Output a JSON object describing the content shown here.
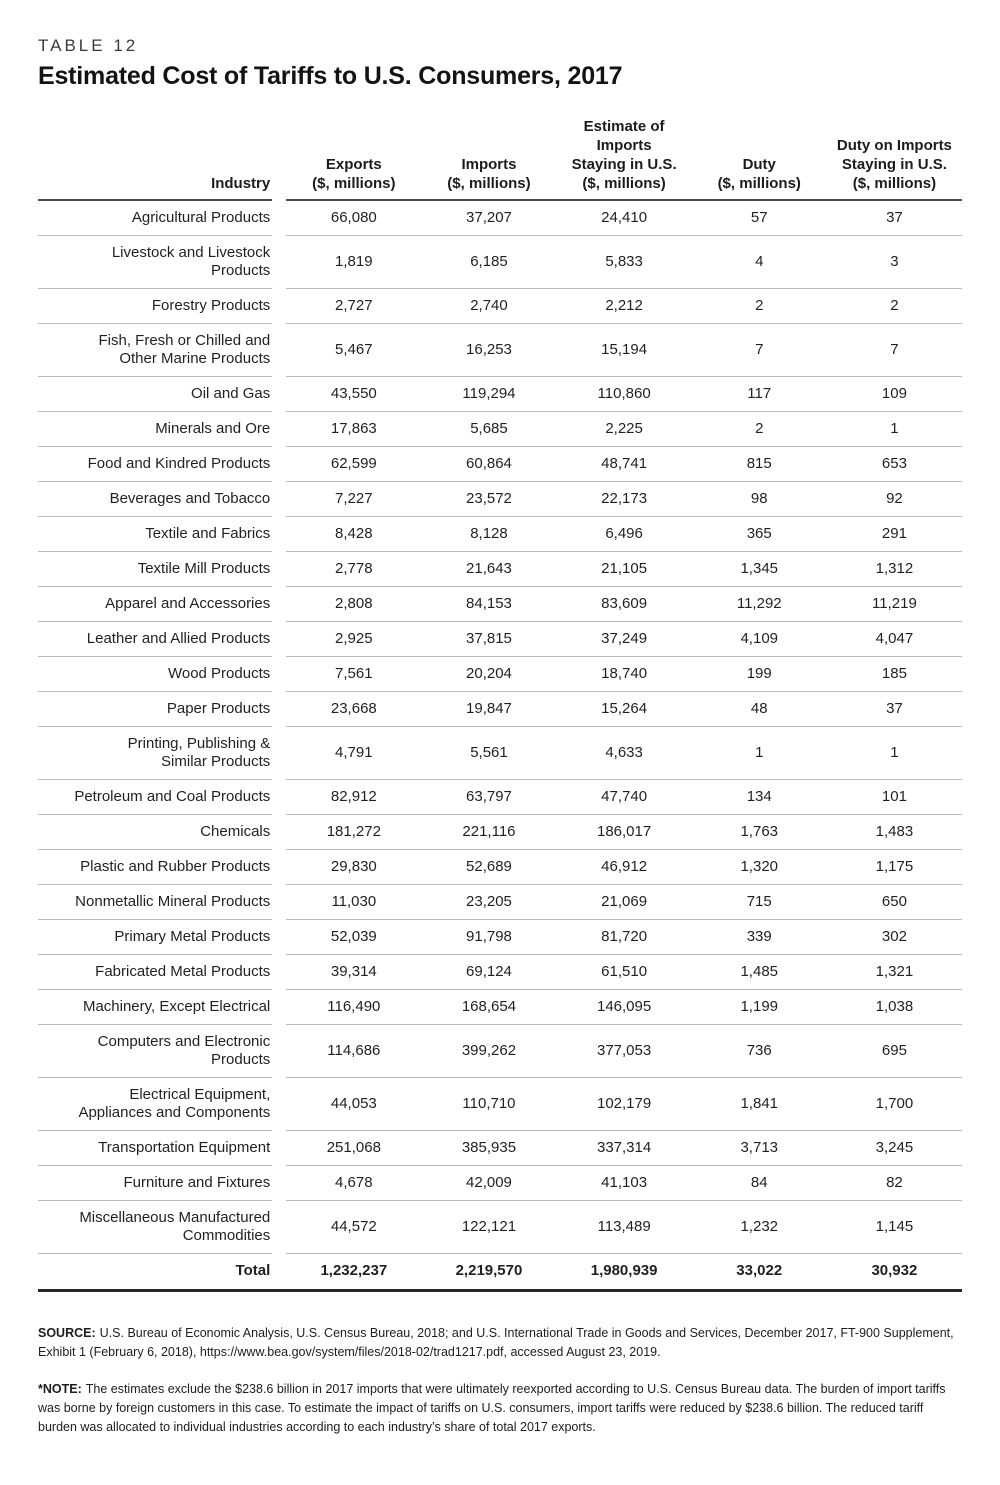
{
  "page": {
    "table_label": "TABLE 12",
    "title": "Estimated Cost of Tariffs to U.S. Consumers, 2017"
  },
  "chart_data": {
    "type": "table",
    "headers": {
      "industry": "Industry",
      "exports": "Exports\n($, millions)",
      "imports": "Imports\n($, millions)",
      "estimate_staying": "Estimate of\nImports\nStaying in U.S.\n($, millions)",
      "duty": "Duty\n($, millions)",
      "duty_staying": "Duty on Imports\nStaying in U.S.\n($, millions)"
    },
    "rows": [
      {
        "industry": "Agricultural Products",
        "values": [
          "66,080",
          "37,207",
          "24,410",
          "57",
          "37"
        ]
      },
      {
        "industry": "Livestock and Livestock\nProducts",
        "values": [
          "1,819",
          "6,185",
          "5,833",
          "4",
          "3"
        ]
      },
      {
        "industry": "Forestry Products",
        "values": [
          "2,727",
          "2,740",
          "2,212",
          "2",
          "2"
        ]
      },
      {
        "industry": "Fish, Fresh or Chilled and\nOther Marine Products",
        "values": [
          "5,467",
          "16,253",
          "15,194",
          "7",
          "7"
        ]
      },
      {
        "industry": "Oil and Gas",
        "values": [
          "43,550",
          "119,294",
          "110,860",
          "117",
          "109"
        ]
      },
      {
        "industry": "Minerals and Ore",
        "values": [
          "17,863",
          "5,685",
          "2,225",
          "2",
          "1"
        ]
      },
      {
        "industry": "Food and Kindred Products",
        "values": [
          "62,599",
          "60,864",
          "48,741",
          "815",
          "653"
        ]
      },
      {
        "industry": "Beverages and Tobacco",
        "values": [
          "7,227",
          "23,572",
          "22,173",
          "98",
          "92"
        ]
      },
      {
        "industry": "Textile and Fabrics",
        "values": [
          "8,428",
          "8,128",
          "6,496",
          "365",
          "291"
        ]
      },
      {
        "industry": "Textile Mill Products",
        "values": [
          "2,778",
          "21,643",
          "21,105",
          "1,345",
          "1,312"
        ]
      },
      {
        "industry": "Apparel and Accessories",
        "values": [
          "2,808",
          "84,153",
          "83,609",
          "11,292",
          "11,219"
        ]
      },
      {
        "industry": "Leather and Allied Products",
        "values": [
          "2,925",
          "37,815",
          "37,249",
          "4,109",
          "4,047"
        ]
      },
      {
        "industry": "Wood Products",
        "values": [
          "7,561",
          "20,204",
          "18,740",
          "199",
          "185"
        ]
      },
      {
        "industry": "Paper Products",
        "values": [
          "23,668",
          "19,847",
          "15,264",
          "48",
          "37"
        ]
      },
      {
        "industry": "Printing, Publishing &\nSimilar Products",
        "values": [
          "4,791",
          "5,561",
          "4,633",
          "1",
          "1"
        ]
      },
      {
        "industry": "Petroleum and Coal Products",
        "values": [
          "82,912",
          "63,797",
          "47,740",
          "134",
          "101"
        ]
      },
      {
        "industry": "Chemicals",
        "values": [
          "181,272",
          "221,116",
          "186,017",
          "1,763",
          "1,483"
        ]
      },
      {
        "industry": "Plastic and Rubber Products",
        "values": [
          "29,830",
          "52,689",
          "46,912",
          "1,320",
          "1,175"
        ]
      },
      {
        "industry": "Nonmetallic Mineral Products",
        "values": [
          "11,030",
          "23,205",
          "21,069",
          "715",
          "650"
        ]
      },
      {
        "industry": "Primary Metal Products",
        "values": [
          "52,039",
          "91,798",
          "81,720",
          "339",
          "302"
        ]
      },
      {
        "industry": "Fabricated Metal Products",
        "values": [
          "39,314",
          "69,124",
          "61,510",
          "1,485",
          "1,321"
        ]
      },
      {
        "industry": "Machinery, Except Electrical",
        "values": [
          "116,490",
          "168,654",
          "146,095",
          "1,199",
          "1,038"
        ]
      },
      {
        "industry": "Computers and Electronic\nProducts",
        "values": [
          "114,686",
          "399,262",
          "377,053",
          "736",
          "695"
        ]
      },
      {
        "industry": "Electrical Equipment,\nAppliances and Components",
        "values": [
          "44,053",
          "110,710",
          "102,179",
          "1,841",
          "1,700"
        ]
      },
      {
        "industry": "Transportation Equipment",
        "values": [
          "251,068",
          "385,935",
          "337,314",
          "3,713",
          "3,245"
        ]
      },
      {
        "industry": "Furniture and Fixtures",
        "values": [
          "4,678",
          "42,009",
          "41,103",
          "84",
          "82"
        ]
      },
      {
        "industry": "Miscellaneous Manufactured\nCommodities",
        "values": [
          "44,572",
          "122,121",
          "113,489",
          "1,232",
          "1,145"
        ]
      }
    ],
    "total": {
      "label": "Total",
      "values": [
        "1,232,237",
        "2,219,570",
        "1,980,939",
        "33,022",
        "30,932"
      ]
    }
  },
  "footnotes": {
    "source_label": "SOURCE:",
    "source_text": "U.S. Bureau of Economic Analysis, U.S. Census Bureau, 2018; and U.S. International Trade in Goods and Services, December 2017, FT-900 Supplement, Exhibit 1 (February 6, 2018), https://www.bea.gov/system/files/2018-02/trad1217.pdf, accessed August 23, 2019.",
    "note_label": "*NOTE:",
    "note_text": "The estimates exclude the $238.6 billion in 2017 imports that were ultimately reexported according to U.S. Census Bureau data. The burden of import tariffs was borne by foreign customers in this case. To estimate the impact of tariffs on U.S. consumers, import tariffs were reduced by $238.6 billion. The reduced tariff burden was allocated to individual industries according to each industry’s share of total 2017 exports."
  }
}
